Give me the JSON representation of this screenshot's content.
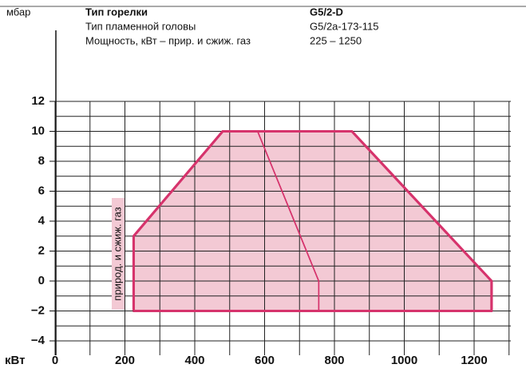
{
  "chart_data": {
    "type": "area",
    "y_unit": "мбар",
    "x_unit": "кВт",
    "header": [
      [
        "Тип горелки",
        "G5/2-D"
      ],
      [
        "Тип пламенной головы",
        "G5/2a-173-115"
      ],
      [
        "Мощность, кВт – прир. и сжиж. газ",
        "225 – 1250"
      ]
    ],
    "xlim": [
      0,
      1300
    ],
    "ylim": [
      -4,
      12
    ],
    "xticks": [
      0,
      200,
      400,
      600,
      800,
      1000,
      1200
    ],
    "yticks": [
      {
        "value": -4,
        "label": "−4"
      },
      {
        "value": -2,
        "label": "−2"
      },
      0,
      2,
      4,
      6,
      8,
      10,
      12
    ],
    "xgrid": [
      0,
      100,
      200,
      300,
      400,
      500,
      600,
      700,
      800,
      900,
      1000,
      1100,
      1200,
      1300
    ],
    "ygrid": [
      -4,
      -3,
      -2,
      -1,
      0,
      1,
      2,
      3,
      4,
      5,
      6,
      7,
      8,
      9,
      10,
      11,
      12
    ],
    "grid": true,
    "series": [
      {
        "name": "природ. и сжиж. газ",
        "color": "#d6336c",
        "fill": "#f3c9d4",
        "x": [
          225,
          225,
          480,
          850,
          1250,
          1250,
          225
        ],
        "values": [
          -2,
          3,
          10,
          10,
          0,
          -2,
          -2
        ]
      },
      {
        "color": "#d6336c",
        "x": [
          580,
          755,
          755
        ],
        "values": [
          10,
          0,
          -2
        ]
      }
    ]
  }
}
